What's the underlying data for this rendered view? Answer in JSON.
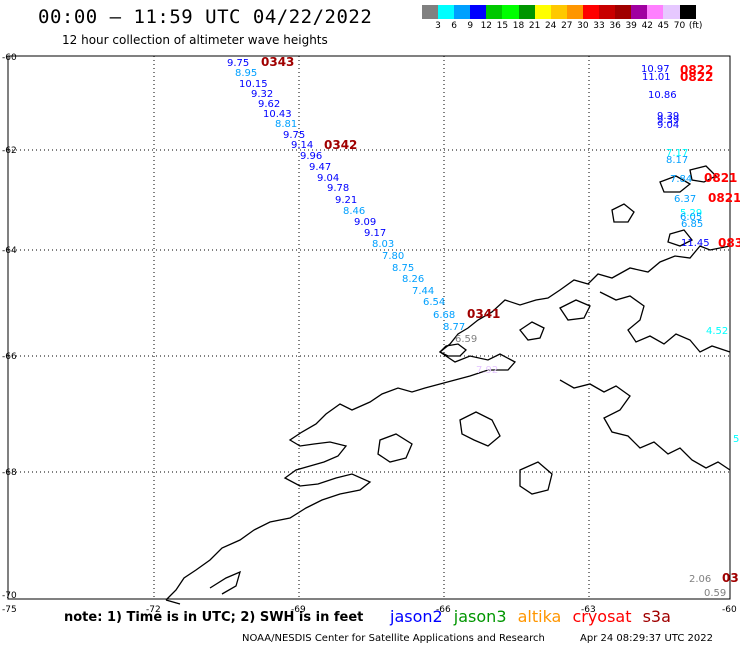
{
  "header": {
    "title": "00:00 – 11:59 UTC 04/22/2022",
    "subtitle": "12 hour collection of altimeter wave heights"
  },
  "color_scale": {
    "colors": [
      "#808080",
      "#00ffff",
      "#00a0ff",
      "#0000ff",
      "#00c800",
      "#00ff00",
      "#009600",
      "#ffff00",
      "#ffc800",
      "#ff9600",
      "#ff0000",
      "#c80000",
      "#a00000",
      "#a000a0",
      "#ff80ff",
      "#e6c8ff",
      "#000000"
    ],
    "labels": [
      "3",
      "6",
      "9",
      "12",
      "15",
      "18",
      "21",
      "24",
      "27",
      "30",
      "33",
      "36",
      "39",
      "42",
      "45",
      "70",
      "(ft)"
    ]
  },
  "axes": {
    "lat_labels": [
      "-60",
      "-62",
      "-64",
      "-66",
      "-68",
      "-70"
    ],
    "lon_labels": [
      "-75",
      "-72",
      "-69",
      "-66",
      "-63",
      "-60"
    ]
  },
  "track_labels": {
    "west": [
      "9.75",
      "8.95",
      "10.15",
      "9.32",
      "9.62",
      "10.43",
      "8.81",
      "9.75",
      "9.14",
      "9.96",
      "9.47",
      "9.04",
      "9.78",
      "9.21",
      "8.46",
      "9.09",
      "9.17",
      "8.03",
      "7.80",
      "8.75",
      "8.26",
      "7.44",
      "6.54",
      "6.68",
      "8.77",
      "6.59",
      "7.92"
    ],
    "east": [
      "10.97",
      "11.01",
      "10.86",
      "9.39",
      "9.39",
      "9.04",
      "7.17",
      "8.17",
      "7.84",
      "6.37",
      "5.29",
      "6.05",
      "6.85",
      "11.45",
      "4.52",
      "5",
      "2.06",
      "0.59"
    ]
  },
  "time_labels": {
    "west": [
      "0343",
      "0342",
      "0341"
    ],
    "east": [
      "0822",
      "0822",
      "0821",
      "0821",
      "083",
      "03"
    ]
  },
  "note": "note: 1) Time is in UTC; 2) SWH is in feet",
  "legend": [
    {
      "name": "jason2",
      "color": "#0000ff"
    },
    {
      "name": "jason3",
      "color": "#009600"
    },
    {
      "name": "altika",
      "color": "#ff9600"
    },
    {
      "name": "cryosat",
      "color": "#ff0000"
    },
    {
      "name": "s3a",
      "color": "#a00000"
    }
  ],
  "footer": {
    "credit": "NOAA/NESDIS Center for Satellite Applications and Research",
    "timestamp": "Apr 24 08:29:37 UTC 2022"
  }
}
